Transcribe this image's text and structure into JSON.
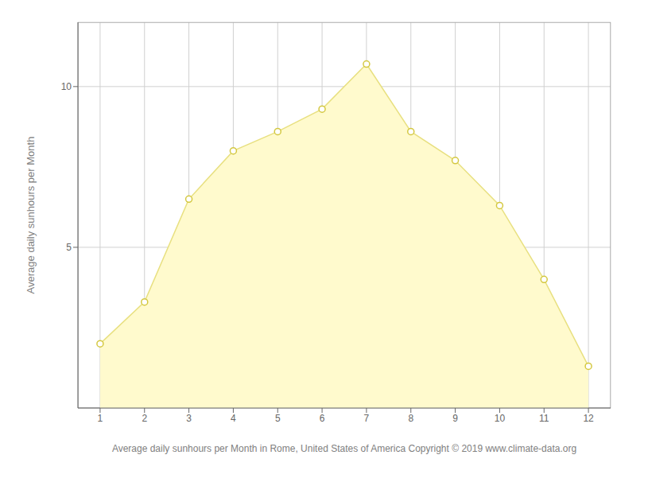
{
  "chart_data": {
    "type": "area",
    "x": [
      1,
      2,
      3,
      4,
      5,
      6,
      7,
      8,
      9,
      10,
      11,
      12
    ],
    "values": [
      2.0,
      3.3,
      6.5,
      8.0,
      8.6,
      9.3,
      10.7,
      8.6,
      7.7,
      6.3,
      4.0,
      1.3
    ],
    "color": "#FFFACD",
    "marker": "o",
    "xlabel": "Average daily sunhours per Month in Rome, United States of America Copyright © 2019 www.climate-data.org",
    "ylabel": "Average daily sunhours per Month",
    "xlim": [
      0.5,
      12.5
    ],
    "ylim": [
      0,
      12
    ],
    "xticks": [
      1,
      2,
      3,
      4,
      5,
      6,
      7,
      8,
      9,
      10,
      11,
      12
    ],
    "yticks": [
      5,
      10
    ],
    "grid": true
  }
}
